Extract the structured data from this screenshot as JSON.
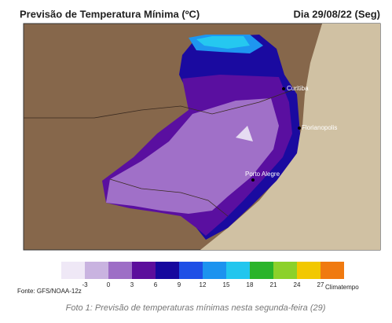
{
  "header": {
    "title": "Previsão de Temperatura Mínima (ºC)",
    "date": "Dia 29/08/22 (Seg)"
  },
  "map": {
    "cities": [
      "Curitiba",
      "Florianopolis",
      "Porto Alegre"
    ]
  },
  "legend": {
    "ticks": [
      -3,
      0,
      3,
      6,
      9,
      12,
      15,
      18,
      21,
      24,
      27
    ],
    "colors": [
      "#efe8f6",
      "#c9b3e0",
      "#9d6ec6",
      "#5c0e9c",
      "#16089e",
      "#1e4fe6",
      "#1c93ef",
      "#22c6ee",
      "#2ab42a",
      "#8cd12a",
      "#f2c800",
      "#f07a10"
    ]
  },
  "footer": {
    "source": "Fonte: GFS/NOAA-12z",
    "brand": "Climatempo",
    "caption": "Foto 1: Previsão de temperaturas mínimas nesta segunda-feira (29)"
  }
}
